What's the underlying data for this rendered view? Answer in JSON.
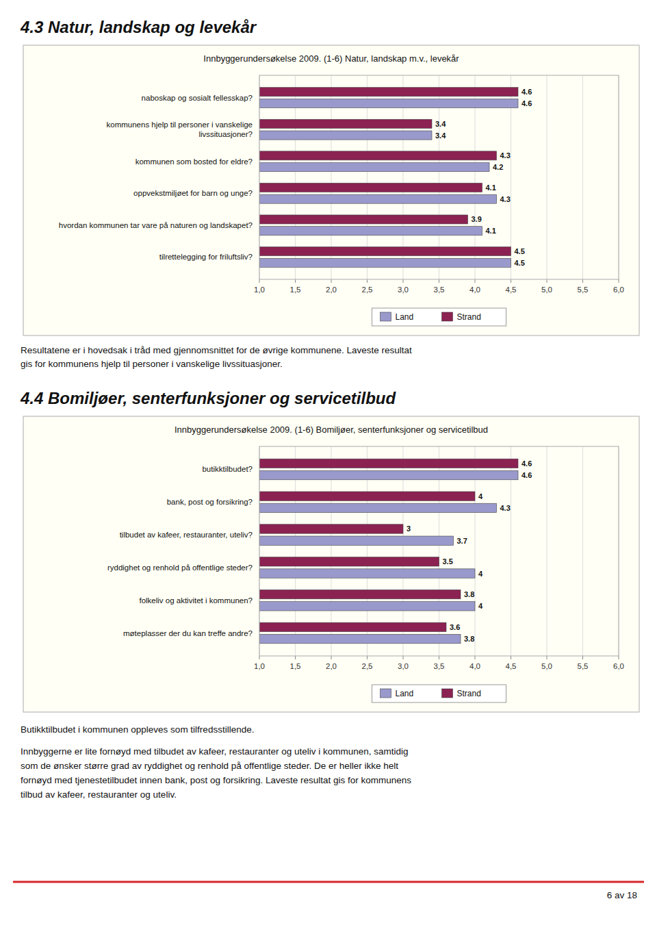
{
  "chart_data": [
    {
      "type": "bar",
      "orientation": "horizontal",
      "title": "Innbyggerundersøkelse 2009. (1-6) Natur, landskap m.v., levekår",
      "categories": [
        "tilrettelegging for friluftsliv?",
        "hvordan kommunen tar vare på naturen og landskapet?",
        "oppvekstmiljøet for barn og unge?",
        "kommunen som bosted for eldre?",
        "kommunens hjelp til personer i vanskelige\nlivssituasjoner?",
        "naboskap og sosialt fellesskap?"
      ],
      "series": [
        {
          "name": "Land",
          "color": "#9999CC",
          "values": [
            4.5,
            4.1,
            4.3,
            4.2,
            3.4,
            4.6
          ]
        },
        {
          "name": "Strand",
          "color": "#8B2252",
          "values": [
            4.5,
            3.9,
            4.1,
            4.3,
            3.4,
            4.6
          ]
        }
      ],
      "xlim": [
        1.0,
        6.0
      ],
      "xticks": [
        {
          "value": 1.0,
          "label": "1,0"
        },
        {
          "value": 1.5,
          "label": "1,5"
        },
        {
          "value": 2.0,
          "label": "2,0"
        },
        {
          "value": 2.5,
          "label": "2,5"
        },
        {
          "value": 3.0,
          "label": "3,0"
        },
        {
          "value": 3.5,
          "label": "3,5"
        },
        {
          "value": 4.0,
          "label": "4,0"
        },
        {
          "value": 4.5,
          "label": "4,5"
        },
        {
          "value": 5.0,
          "label": "5,0"
        },
        {
          "value": 5.5,
          "label": "5,5"
        },
        {
          "value": 6.0,
          "label": "6,0"
        }
      ],
      "grid": true,
      "legend": "bottom",
      "data_labels": true
    },
    {
      "type": "bar",
      "orientation": "horizontal",
      "title": "Innbyggerundersøkelse 2009. (1-6) Bomiljøer, senterfunksjoner og servicetilbud",
      "categories": [
        "møteplasser der du kan treffe andre?",
        "folkeliv og aktivitet i kommunen?",
        "ryddighet og renhold på offentlige steder?",
        "tilbudet av kafeer, restauranter, uteliv?",
        "bank, post og forsikring?",
        "butikktilbudet?"
      ],
      "series": [
        {
          "name": "Land",
          "color": "#9999CC",
          "values": [
            3.8,
            4.0,
            4.0,
            3.7,
            4.3,
            4.6
          ]
        },
        {
          "name": "Strand",
          "color": "#8B2252",
          "values": [
            3.6,
            3.8,
            3.5,
            3.0,
            4.0,
            4.6
          ]
        }
      ],
      "xlim": [
        1.0,
        6.0
      ],
      "xticks": [
        {
          "value": 1.0,
          "label": "1,0"
        },
        {
          "value": 1.5,
          "label": "1,5"
        },
        {
          "value": 2.0,
          "label": "2,0"
        },
        {
          "value": 2.5,
          "label": "2,5"
        },
        {
          "value": 3.0,
          "label": "3,0"
        },
        {
          "value": 3.5,
          "label": "3,5"
        },
        {
          "value": 4.0,
          "label": "4,0"
        },
        {
          "value": 4.5,
          "label": "4,5"
        },
        {
          "value": 5.0,
          "label": "5,0"
        },
        {
          "value": 5.5,
          "label": "5,5"
        },
        {
          "value": 6.0,
          "label": "6,0"
        }
      ],
      "grid": true,
      "legend": "bottom",
      "data_labels": true
    }
  ],
  "page": {
    "headings": [
      "4.3 Natur, landskap og levekår",
      "4.4 Bomiljøer, senterfunksjoner og servicetilbud"
    ],
    "paragraphs": [
      [
        "Resultatene er i hovedsak i tråd med gjennomsnittet for de øvrige kommunene. Laveste resultat",
        "gis for kommunens hjelp til personer i vanskelige livssituasjoner."
      ],
      [
        "Butikktilbudet i kommunen oppleves som tilfredsstillende."
      ],
      [
        "Innbyggerne er lite fornøyd med tilbudet av kafeer, restauranter og uteliv i kommunen, samtidig",
        "som de ønsker større grad av ryddighet og renhold på offentlige steder. De er heller ikke helt",
        "fornøyd med tjenestetilbudet innen bank, post og forsikring. Laveste resultat gis for kommunens",
        "tilbud av kafeer, restauranter og uteliv."
      ]
    ],
    "footer": "6 av 18"
  }
}
